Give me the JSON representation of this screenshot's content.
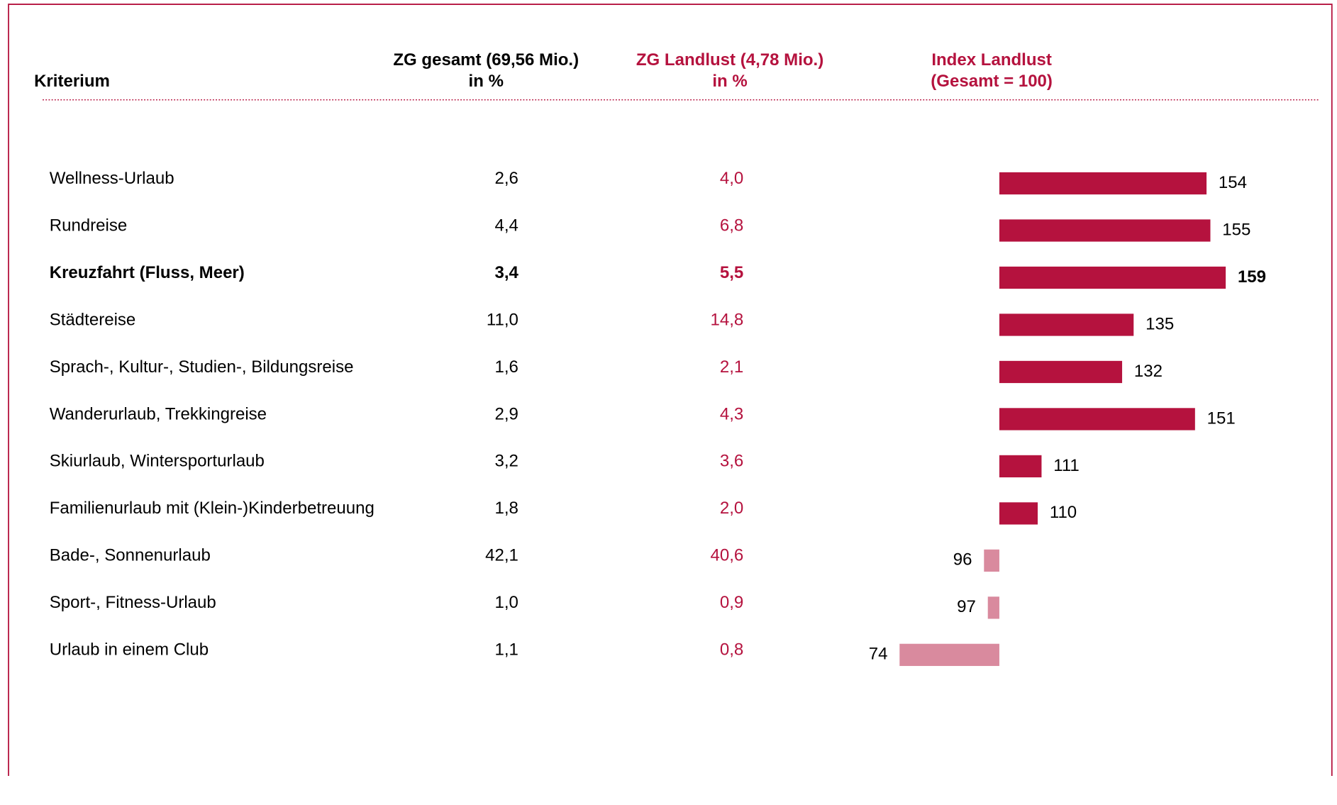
{
  "chart_data": {
    "type": "bar",
    "orientation": "horizontal",
    "headers": [
      [
        "Kriterium"
      ],
      [
        "ZG gesamt (69,56 Mio.)",
        "in %"
      ],
      [
        "ZG Landlust (4,78 Mio.)",
        "in %"
      ],
      [
        "Index Landlust",
        " (Gesamt = 100)"
      ]
    ],
    "categories": [
      "Wellness-Urlaub",
      "Rundreise",
      "Kreuzfahrt (Fluss, Meer)",
      "Städtereise",
      "Sprach-, Kultur-, Studien-, Bildungsreise",
      "Wanderurlaub, Trekkingreise",
      "Skiurlaub, Wintersporturlaub",
      "Familienurlaub mit (Klein-)Kinderbetreuung",
      "Bade-, Sonnenurlaub",
      "Sport-, Fitness-Urlaub",
      "Urlaub in einem Club"
    ],
    "gesamt": [
      "2,6",
      "4,4",
      "3,4",
      "11,0",
      "1,6",
      "2,9",
      "3,2",
      "1,8",
      "42,1",
      "1,0",
      "1,1"
    ],
    "landlust": [
      "4,0",
      "6,8",
      "5,5",
      "14,8",
      "2,1",
      "4,3",
      "3,6",
      "2,0",
      "40,6",
      "0,9",
      "0,8"
    ],
    "values": [
      154,
      155,
      159,
      135,
      132,
      151,
      111,
      110,
      96,
      97,
      74
    ],
    "baseline": 100,
    "xlim": [
      0,
      170
    ],
    "color": "#b5123e",
    "color_below": "#d98a9e",
    "highlight": 2
  }
}
